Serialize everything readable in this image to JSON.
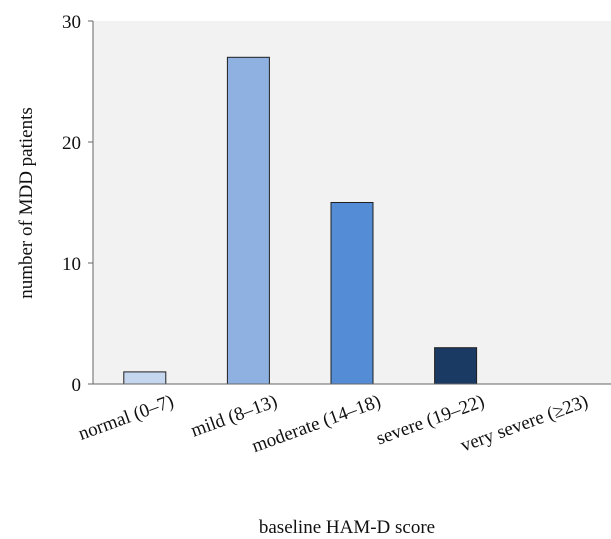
{
  "chart_data": {
    "type": "bar",
    "xlabel": "baseline HAM-D score",
    "ylabel": "number of MDD patients",
    "categories": [
      "normal (0–7)",
      "mild (8–13)",
      "moderate (14–18)",
      "severe (19–22)",
      "very severe (≥23)"
    ],
    "values": [
      1,
      27,
      15,
      3,
      0
    ],
    "bar_colors": [
      "#c5d6ef",
      "#8eb1e2",
      "#548dd6",
      "#1b3a63",
      "#1b3a63"
    ],
    "ylim": [
      0,
      30
    ],
    "yticks": [
      0,
      10,
      20,
      30
    ],
    "grid": false,
    "plot_background": "#f2f2f2",
    "bar_edge_color": "#1f1f1f"
  }
}
